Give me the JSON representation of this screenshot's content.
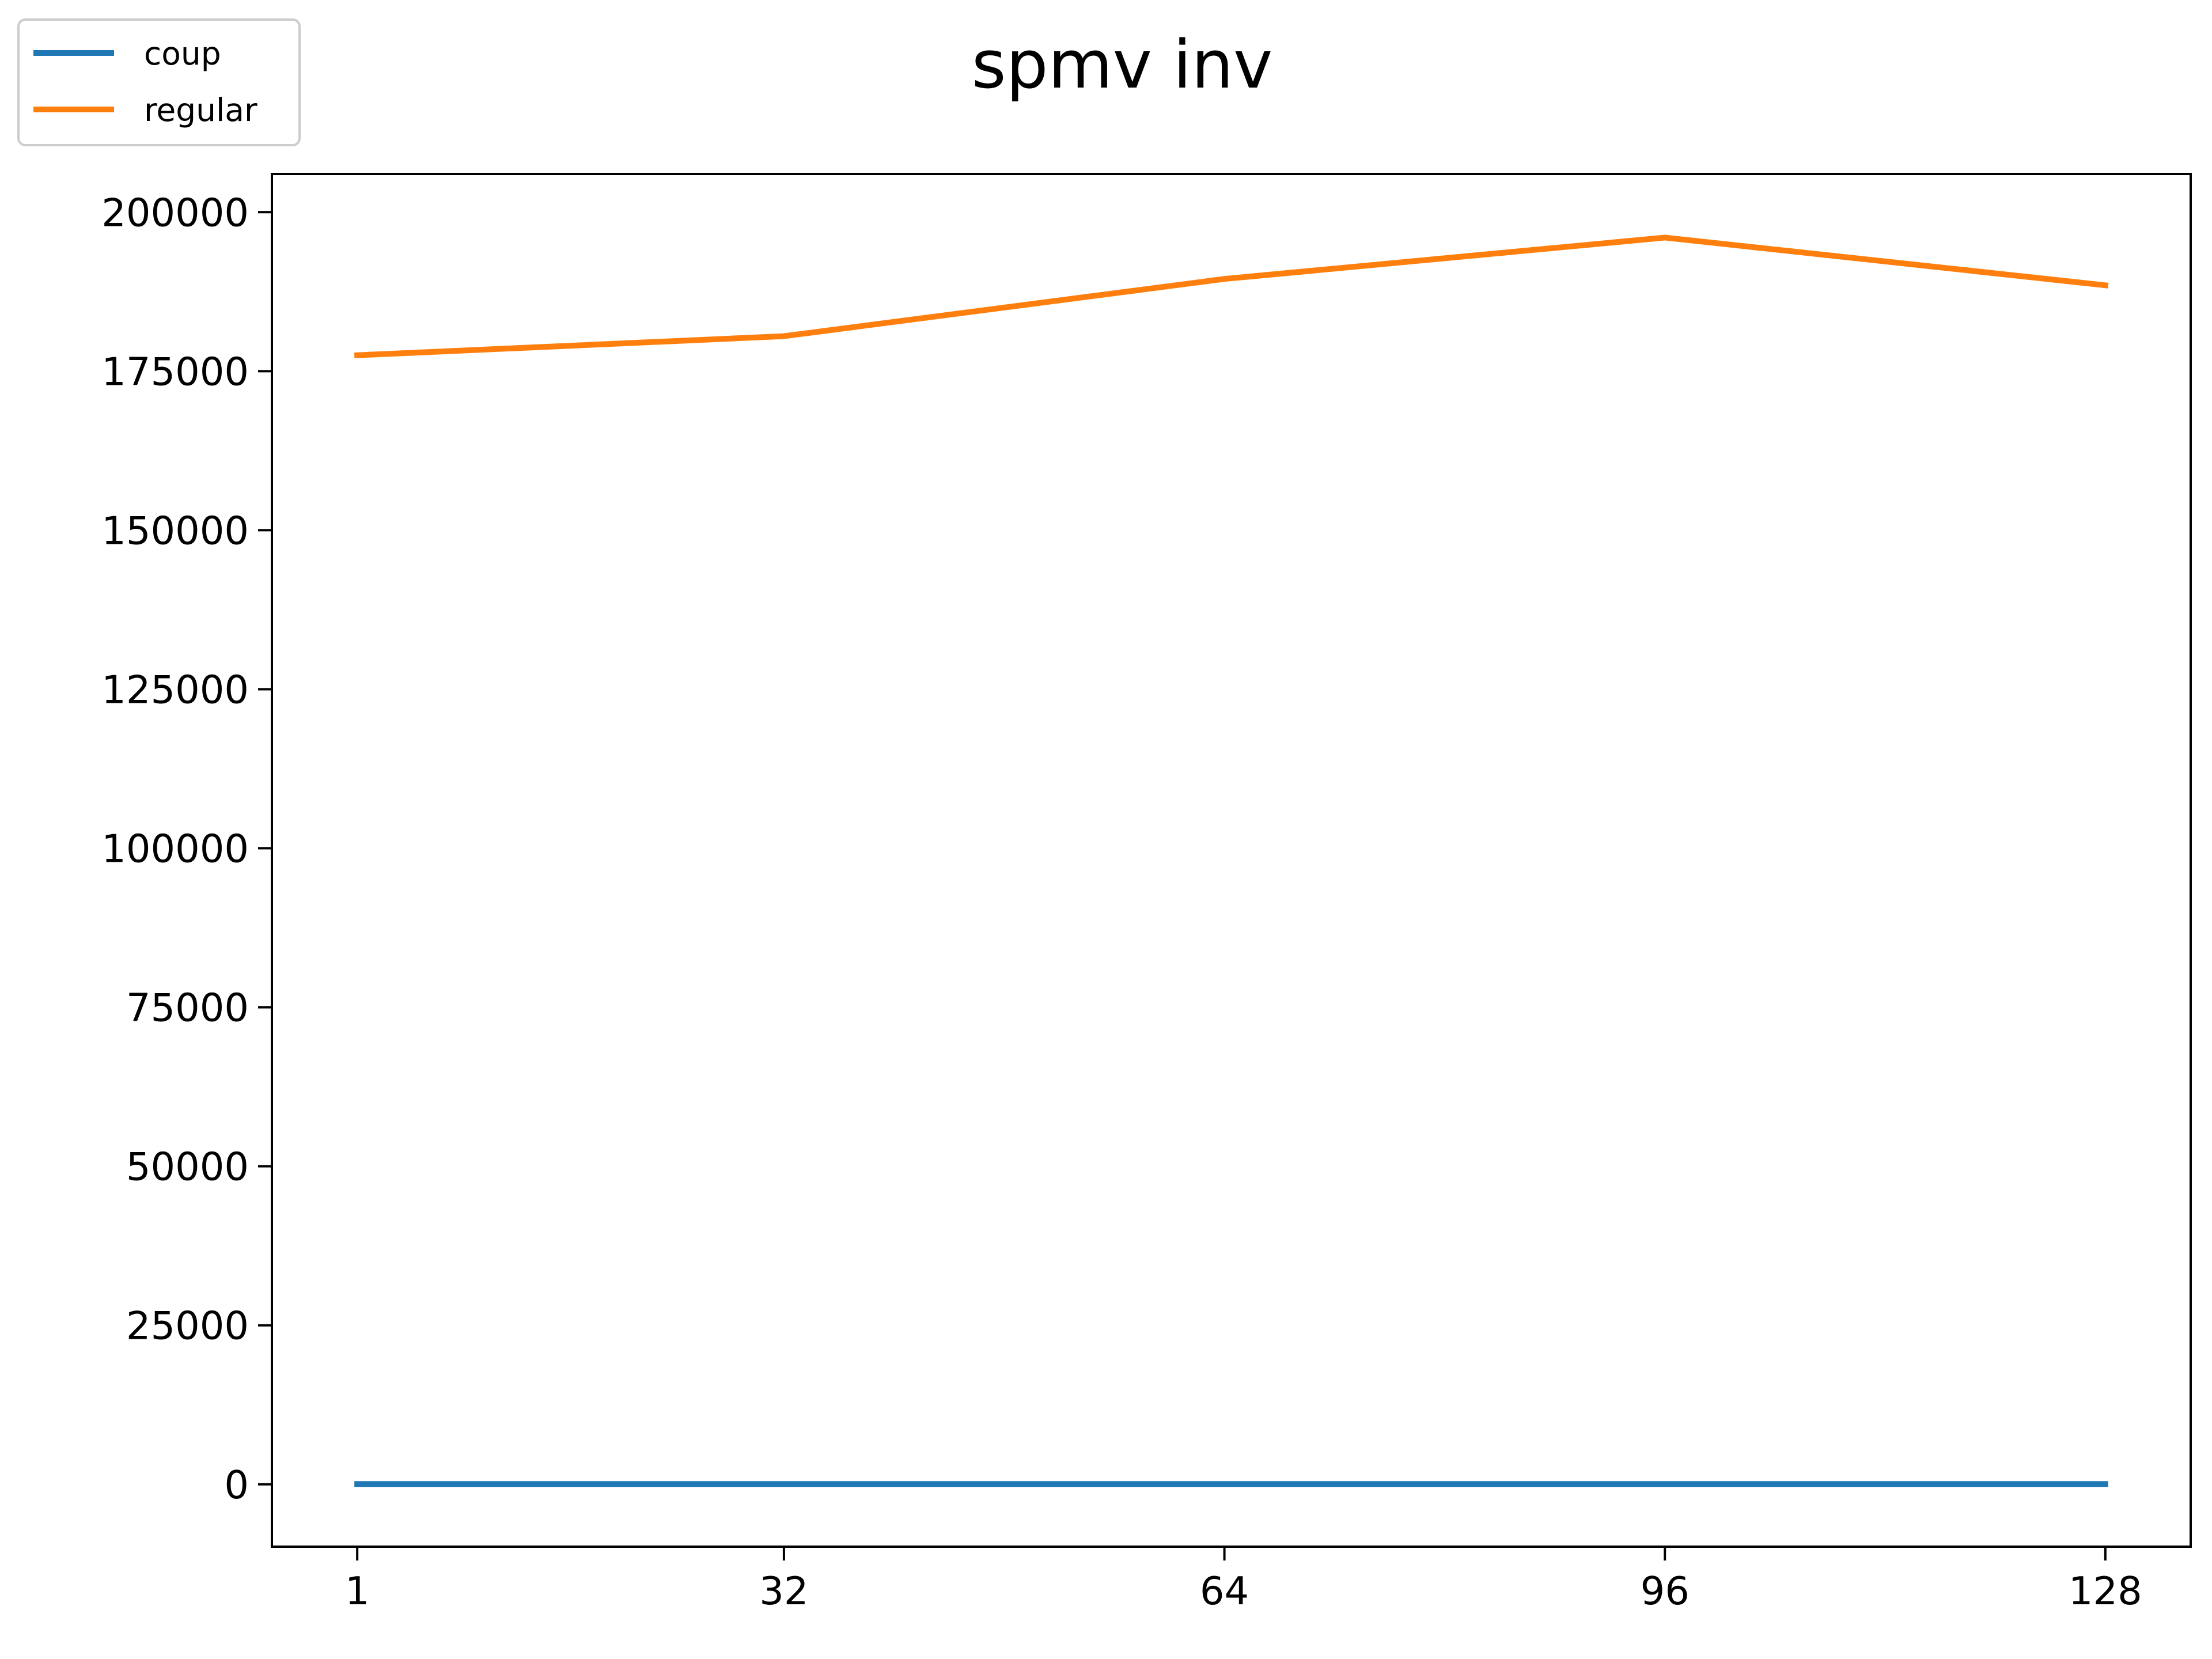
{
  "chart_data": {
    "type": "line",
    "title": "spmv inv",
    "xlabel": "",
    "ylabel": "",
    "x": [
      1,
      32,
      64,
      96,
      128
    ],
    "x_ticks": [
      "1",
      "32",
      "64",
      "96",
      "128"
    ],
    "y_ticks": [
      "0",
      "25000",
      "50000",
      "75000",
      "100000",
      "125000",
      "150000",
      "175000",
      "200000"
    ],
    "y_tick_values": [
      0,
      25000,
      50000,
      75000,
      100000,
      125000,
      150000,
      175000,
      200000
    ],
    "ylim": [
      -9800,
      206000
    ],
    "xlim": [
      -5.2,
      134.2
    ],
    "grid": false,
    "legend_placement": "top-left (outside axes)",
    "series": [
      {
        "name": "coup",
        "color": "#1f77b4",
        "values": [
          50,
          50,
          50,
          50,
          50
        ]
      },
      {
        "name": "regular",
        "color": "#ff7f0e",
        "values": [
          177500,
          180500,
          189500,
          196000,
          188500
        ]
      }
    ]
  }
}
